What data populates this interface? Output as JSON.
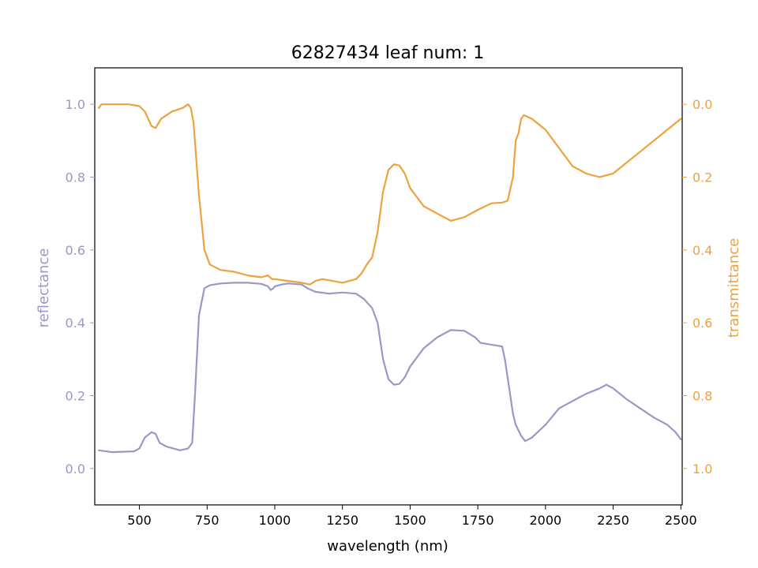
{
  "chart_data": {
    "type": "line",
    "title": "62827434 leaf num: 1",
    "xlabel": "wavelength (nm)",
    "ylabel_left": "reflectance",
    "ylabel_right": "transmittance",
    "xlim": [
      335,
      2505
    ],
    "ylim_left": [
      -0.1,
      1.1
    ],
    "ylim_right_inverted": [
      1.1,
      -0.1
    ],
    "x_ticks": [
      "500",
      "750",
      "1000",
      "1250",
      "1500",
      "1750",
      "2000",
      "2250",
      "2500"
    ],
    "y_left_ticks": [
      "0.0",
      "0.2",
      "0.4",
      "0.6",
      "0.8",
      "1.0"
    ],
    "y_right_ticks": [
      "0.0",
      "0.2",
      "0.4",
      "0.6",
      "0.8",
      "1.0"
    ],
    "grid": false,
    "series": [
      {
        "axis": "left",
        "color": "#9b97c7",
        "x": [
          350,
          400,
          480,
          500,
          520,
          545,
          560,
          575,
          600,
          650,
          680,
          695,
          705,
          720,
          740,
          760,
          800,
          850,
          900,
          950,
          975,
          985,
          995,
          1000,
          1025,
          1050,
          1100,
          1120,
          1150,
          1200,
          1250,
          1300,
          1330,
          1360,
          1380,
          1400,
          1420,
          1440,
          1460,
          1480,
          1500,
          1550,
          1600,
          1650,
          1700,
          1740,
          1760,
          1800,
          1840,
          1850,
          1860,
          1870,
          1880,
          1890,
          1900,
          1910,
          1925,
          1950,
          2000,
          2050,
          2100,
          2150,
          2200,
          2225,
          2250,
          2300,
          2350,
          2400,
          2450,
          2480,
          2500
        ],
        "y": [
          0.05,
          0.045,
          0.047,
          0.055,
          0.085,
          0.1,
          0.095,
          0.07,
          0.06,
          0.05,
          0.055,
          0.07,
          0.2,
          0.42,
          0.495,
          0.503,
          0.508,
          0.51,
          0.51,
          0.507,
          0.5,
          0.49,
          0.495,
          0.5,
          0.505,
          0.508,
          0.505,
          0.495,
          0.485,
          0.48,
          0.483,
          0.48,
          0.465,
          0.44,
          0.4,
          0.3,
          0.245,
          0.23,
          0.232,
          0.25,
          0.28,
          0.33,
          0.36,
          0.38,
          0.378,
          0.36,
          0.345,
          0.34,
          0.335,
          0.3,
          0.25,
          0.2,
          0.15,
          0.12,
          0.105,
          0.09,
          0.075,
          0.085,
          0.12,
          0.165,
          0.185,
          0.205,
          0.22,
          0.23,
          0.22,
          0.19,
          0.165,
          0.14,
          0.12,
          0.1,
          0.08
        ]
      },
      {
        "axis": "right",
        "color": "#eea23d",
        "x": [
          350,
          360,
          400,
          460,
          500,
          520,
          545,
          560,
          580,
          620,
          660,
          680,
          690,
          700,
          720,
          740,
          760,
          800,
          850,
          900,
          950,
          975,
          990,
          1000,
          1050,
          1100,
          1130,
          1150,
          1175,
          1200,
          1250,
          1300,
          1320,
          1340,
          1360,
          1380,
          1400,
          1420,
          1440,
          1460,
          1480,
          1500,
          1550,
          1600,
          1650,
          1700,
          1750,
          1800,
          1840,
          1860,
          1880,
          1890,
          1900,
          1910,
          1920,
          1950,
          2000,
          2050,
          2100,
          2150,
          2200,
          2250,
          2300,
          2350,
          2400,
          2450,
          2500
        ],
        "y": [
          0.01,
          0.0,
          0.0,
          0.0,
          0.005,
          0.02,
          0.06,
          0.065,
          0.04,
          0.02,
          0.01,
          0.0,
          0.01,
          0.05,
          0.25,
          0.4,
          0.44,
          0.455,
          0.46,
          0.47,
          0.475,
          0.47,
          0.48,
          0.48,
          0.485,
          0.49,
          0.495,
          0.485,
          0.48,
          0.483,
          0.49,
          0.48,
          0.465,
          0.44,
          0.42,
          0.35,
          0.24,
          0.18,
          0.165,
          0.168,
          0.19,
          0.23,
          0.28,
          0.3,
          0.32,
          0.31,
          0.29,
          0.272,
          0.27,
          0.265,
          0.2,
          0.1,
          0.08,
          0.04,
          0.03,
          0.04,
          0.07,
          0.12,
          0.17,
          0.19,
          0.2,
          0.19,
          0.16,
          0.13,
          0.1,
          0.07,
          0.04
        ]
      }
    ]
  }
}
